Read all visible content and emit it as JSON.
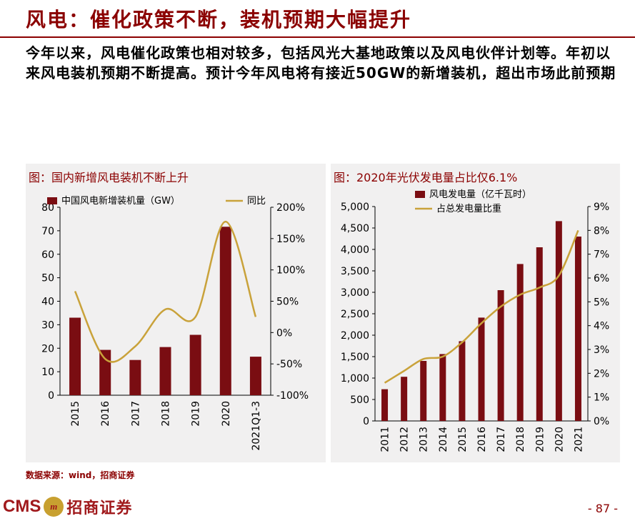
{
  "title": "风电：催化政策不断，装机预期大幅提升",
  "summary": "今年以来，风电催化政策也相对较多，包括风光大基地政策以及风电伙伴计划等。年初以来风电装机预期不断提高。预计今年风电将有接近50GW的新增装机，超出市场此前预期",
  "source": "数据来源：wind，招商证券",
  "page_number": "- 87 -",
  "logo": {
    "latin": "CMS",
    "chinese": "招商证券",
    "mark": "m"
  },
  "colors": {
    "brand": "#8b0000",
    "bar": "#7a0d12",
    "line": "#c9a23a",
    "panel": "#f1f0f0"
  },
  "chart_data": [
    {
      "type": "bar",
      "title": "图：国内新增风电装机不断上升",
      "categories": [
        "2015",
        "2016",
        "2017",
        "2018",
        "2019",
        "2020",
        "2021Q1-3"
      ],
      "series": [
        {
          "name": "中国风电新增装机量（GW）",
          "type": "bar",
          "axis": "left",
          "values": [
            33,
            19.3,
            15,
            20.5,
            25.7,
            71.7,
            16.4
          ]
        },
        {
          "name": "同比",
          "type": "line",
          "axis": "right",
          "values": [
            66,
            -42,
            -22,
            37,
            25,
            177,
            25
          ]
        }
      ],
      "y_left": {
        "min": 0,
        "max": 80,
        "ticks": [
          0,
          10,
          20,
          30,
          40,
          50,
          60,
          70,
          80
        ],
        "labels": [
          "0",
          "10",
          "20",
          "30",
          "40",
          "50",
          "60",
          "70",
          "80"
        ]
      },
      "y_right": {
        "min": -100,
        "max": 200,
        "ticks": [
          -100,
          -50,
          0,
          50,
          100,
          150,
          200
        ],
        "labels": [
          "-100%",
          "-50%",
          "0%",
          "50%",
          "100%",
          "150%",
          "200%"
        ]
      }
    },
    {
      "type": "bar",
      "title": "图：2020年光伏发电量占比仅6.1%",
      "categories": [
        "2011",
        "2012",
        "2013",
        "2014",
        "2015",
        "2016",
        "2017",
        "2018",
        "2019",
        "2020",
        "2021"
      ],
      "series": [
        {
          "name": "风电发电量（亿千瓦时）",
          "type": "bar",
          "axis": "left",
          "values": [
            740,
            1030,
            1400,
            1560,
            1860,
            2410,
            3050,
            3660,
            4050,
            4660,
            4300
          ]
        },
        {
          "name": "占总发电量比重",
          "type": "line",
          "axis": "right",
          "values": [
            1.6,
            2.1,
            2.6,
            2.7,
            3.3,
            4.1,
            4.8,
            5.3,
            5.6,
            6.1,
            8.0
          ]
        }
      ],
      "y_left": {
        "min": 0,
        "max": 5000,
        "ticks": [
          0,
          500,
          1000,
          1500,
          2000,
          2500,
          3000,
          3500,
          4000,
          4500,
          5000
        ],
        "labels": [
          "0",
          "500",
          "1,000",
          "1,500",
          "2,000",
          "2,500",
          "3,000",
          "3,500",
          "4,000",
          "4,500",
          "5,000"
        ]
      },
      "y_right": {
        "min": 0,
        "max": 9,
        "ticks": [
          0,
          1,
          2,
          3,
          4,
          5,
          6,
          7,
          8,
          9
        ],
        "labels": [
          "0%",
          "1%",
          "2%",
          "3%",
          "4%",
          "5%",
          "6%",
          "7%",
          "8%",
          "9%"
        ]
      }
    }
  ]
}
